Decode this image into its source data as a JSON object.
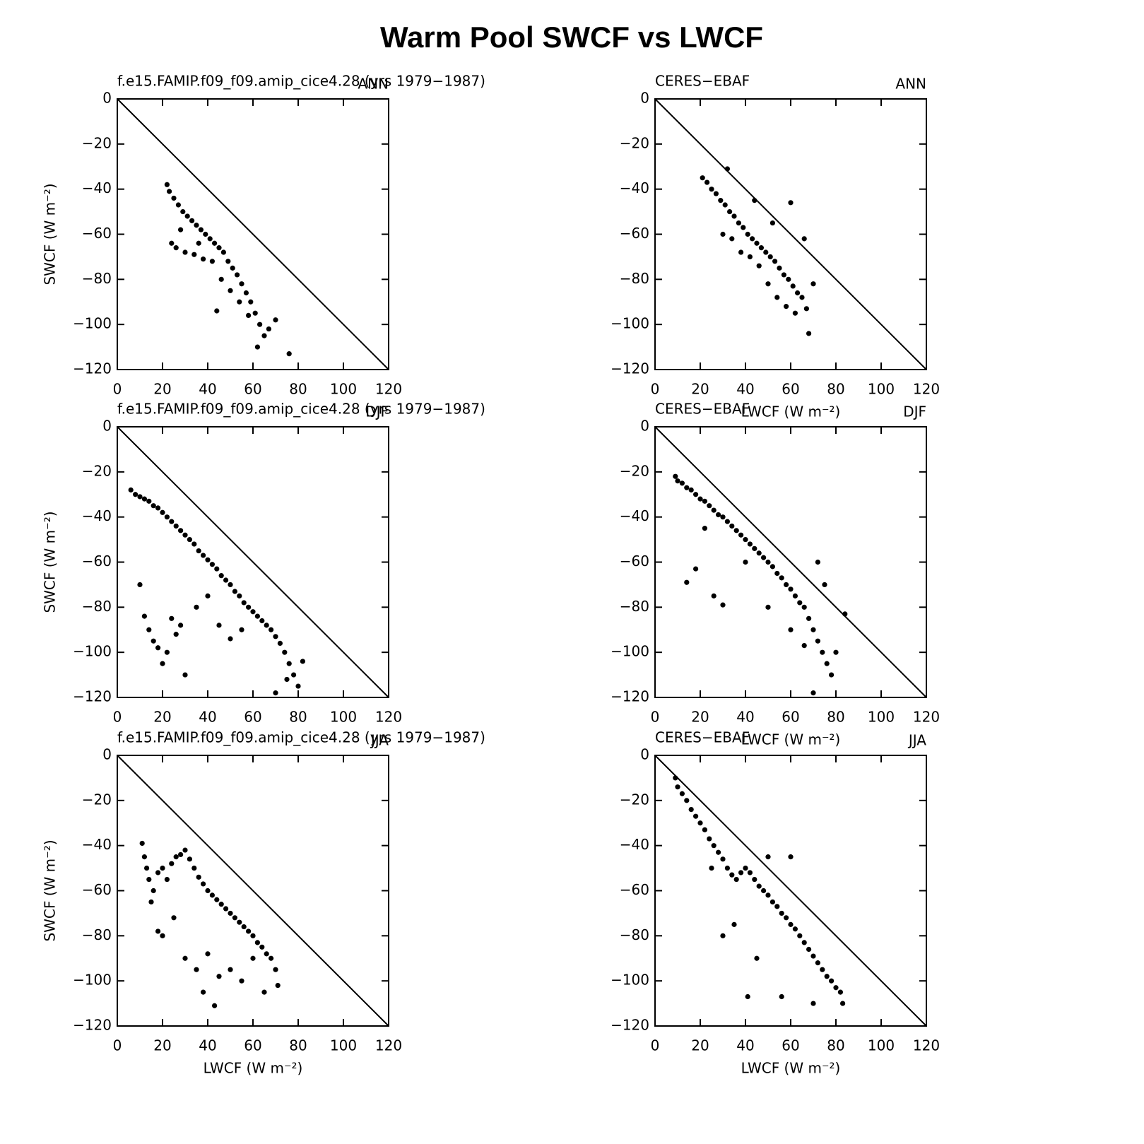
{
  "title": "Warm Pool SWCF vs LWCF",
  "chart_data": [
    {
      "type": "scatter",
      "title": "f.e15.FAMIP.f09_f09.amip_cice4.28 (yrs 1979−1987)",
      "season": "ANN",
      "y_label": "SWCF (W m⁻²)",
      "color": "#000000",
      "xlim": [
        0,
        120
      ],
      "ylim": [
        -120,
        0
      ],
      "xticks": [
        0,
        20,
        40,
        60,
        80,
        100,
        120
      ],
      "yticks": [
        0,
        {
          "value": -20,
          "label": "−20"
        },
        {
          "value": -40,
          "label": "−40"
        },
        {
          "value": -60,
          "label": "−60"
        },
        {
          "value": -80,
          "label": "−80"
        },
        {
          "value": -100,
          "label": "−100"
        },
        {
          "value": -120,
          "label": "−120"
        }
      ],
      "x": [
        22,
        23,
        25,
        27,
        29,
        31,
        33,
        35,
        37,
        39,
        41,
        43,
        45,
        47,
        49,
        51,
        53,
        55,
        57,
        59,
        61,
        63,
        65,
        67,
        70,
        76,
        24,
        26,
        30,
        34,
        38,
        42,
        46,
        50,
        54,
        58,
        62,
        28,
        36,
        44
      ],
      "y": [
        -38,
        -41,
        -44,
        -47,
        -50,
        -52,
        -54,
        -56,
        -58,
        -60,
        -62,
        -64,
        -66,
        -68,
        -72,
        -75,
        -78,
        -82,
        -86,
        -90,
        -95,
        -100,
        -105,
        -102,
        -98,
        -113,
        -64,
        -66,
        -68,
        -69,
        -71,
        -72,
        -80,
        -85,
        -90,
        -96,
        -110,
        -58,
        -64,
        -94
      ]
    },
    {
      "type": "scatter",
      "title": "CERES−EBAF",
      "season": "ANN",
      "x_label": "LWCF (W m⁻²)",
      "color": "#000000",
      "xlim": [
        0,
        120
      ],
      "ylim": [
        -120,
        0
      ],
      "xticks": [
        0,
        20,
        40,
        60,
        80,
        100,
        120
      ],
      "yticks": [
        0,
        {
          "value": -20,
          "label": "−20"
        },
        {
          "value": -40,
          "label": "−40"
        },
        {
          "value": -60,
          "label": "−60"
        },
        {
          "value": -80,
          "label": "−80"
        },
        {
          "value": -100,
          "label": "−100"
        },
        {
          "value": -120,
          "label": "−120"
        }
      ],
      "x": [
        21,
        23,
        25,
        27,
        29,
        31,
        32,
        33,
        35,
        37,
        39,
        41,
        43,
        45,
        47,
        49,
        51,
        53,
        55,
        57,
        59,
        61,
        63,
        65,
        67,
        68,
        30,
        34,
        38,
        42,
        46,
        50,
        54,
        58,
        62,
        66,
        70,
        60,
        44,
        52
      ],
      "y": [
        -35,
        -37,
        -40,
        -42,
        -45,
        -47,
        -31,
        -50,
        -52,
        -55,
        -57,
        -60,
        -62,
        -64,
        -66,
        -68,
        -70,
        -72,
        -75,
        -78,
        -80,
        -83,
        -86,
        -88,
        -93,
        -104,
        -60,
        -62,
        -68,
        -70,
        -74,
        -82,
        -88,
        -92,
        -95,
        -62,
        -82,
        -46,
        -45,
        -55
      ]
    },
    {
      "type": "scatter",
      "title": "f.e15.FAMIP.f09_f09.amip_cice4.28 (yrs 1979−1987)",
      "season": "DJF",
      "y_label": "SWCF (W m⁻²)",
      "color": "#000000",
      "xlim": [
        0,
        120
      ],
      "ylim": [
        -120,
        0
      ],
      "xticks": [
        0,
        20,
        40,
        60,
        80,
        100,
        120
      ],
      "yticks": [
        0,
        {
          "value": -20,
          "label": "−20"
        },
        {
          "value": -40,
          "label": "−40"
        },
        {
          "value": -60,
          "label": "−60"
        },
        {
          "value": -80,
          "label": "−80"
        },
        {
          "value": -100,
          "label": "−100"
        },
        {
          "value": -120,
          "label": "−120"
        }
      ],
      "x": [
        6,
        8,
        10,
        12,
        14,
        16,
        18,
        20,
        22,
        24,
        26,
        28,
        30,
        32,
        34,
        36,
        38,
        40,
        42,
        44,
        46,
        48,
        50,
        52,
        54,
        56,
        58,
        60,
        62,
        64,
        66,
        68,
        70,
        72,
        74,
        76,
        78,
        80,
        82,
        12,
        14,
        16,
        18,
        20,
        22,
        24,
        26,
        28,
        30,
        35,
        40,
        45,
        50,
        55,
        10,
        70,
        75
      ],
      "y": [
        -28,
        -30,
        -31,
        -32,
        -33,
        -35,
        -36,
        -38,
        -40,
        -42,
        -44,
        -46,
        -48,
        -50,
        -52,
        -55,
        -57,
        -59,
        -61,
        -63,
        -66,
        -68,
        -70,
        -73,
        -75,
        -78,
        -80,
        -82,
        -84,
        -86,
        -88,
        -90,
        -93,
        -96,
        -100,
        -105,
        -110,
        -115,
        -104,
        -84,
        -90,
        -95,
        -98,
        -105,
        -100,
        -85,
        -92,
        -88,
        -110,
        -80,
        -75,
        -88,
        -94,
        -90,
        -70,
        -118,
        -112
      ]
    },
    {
      "type": "scatter",
      "title": "CERES−EBAF",
      "season": "DJF",
      "x_label": "LWCF (W m⁻²)",
      "color": "#000000",
      "xlim": [
        0,
        120
      ],
      "ylim": [
        -120,
        0
      ],
      "xticks": [
        0,
        20,
        40,
        60,
        80,
        100,
        120
      ],
      "yticks": [
        0,
        {
          "value": -20,
          "label": "−20"
        },
        {
          "value": -40,
          "label": "−40"
        },
        {
          "value": -60,
          "label": "−60"
        },
        {
          "value": -80,
          "label": "−80"
        },
        {
          "value": -100,
          "label": "−100"
        },
        {
          "value": -120,
          "label": "−120"
        }
      ],
      "x": [
        9,
        10,
        12,
        14,
        16,
        18,
        20,
        22,
        24,
        26,
        28,
        30,
        32,
        34,
        36,
        38,
        40,
        42,
        44,
        46,
        48,
        50,
        52,
        54,
        56,
        58,
        60,
        62,
        64,
        66,
        68,
        70,
        72,
        74,
        76,
        78,
        80,
        84,
        14,
        18,
        22,
        26,
        30,
        40,
        50,
        60,
        66,
        70,
        72,
        75
      ],
      "y": [
        -22,
        -24,
        -25,
        -27,
        -28,
        -30,
        -32,
        -33,
        -35,
        -37,
        -39,
        -40,
        -42,
        -44,
        -46,
        -48,
        -50,
        -52,
        -54,
        -56,
        -58,
        -60,
        -62,
        -65,
        -67,
        -70,
        -72,
        -75,
        -78,
        -80,
        -85,
        -90,
        -95,
        -100,
        -105,
        -110,
        -100,
        -83,
        -69,
        -63,
        -45,
        -75,
        -79,
        -60,
        -80,
        -90,
        -97,
        -118,
        -60,
        -70
      ]
    },
    {
      "type": "scatter",
      "title": "f.e15.FAMIP.f09_f09.amip_cice4.28 (yrs 1979−1987)",
      "season": "JJA",
      "x_label": "LWCF (W m⁻²)",
      "y_label": "SWCF (W m⁻²)",
      "color": "#000000",
      "xlim": [
        0,
        120
      ],
      "ylim": [
        -120,
        0
      ],
      "xticks": [
        0,
        20,
        40,
        60,
        80,
        100,
        120
      ],
      "yticks": [
        0,
        {
          "value": -20,
          "label": "−20"
        },
        {
          "value": -40,
          "label": "−40"
        },
        {
          "value": -60,
          "label": "−60"
        },
        {
          "value": -80,
          "label": "−80"
        },
        {
          "value": -100,
          "label": "−100"
        },
        {
          "value": -120,
          "label": "−120"
        }
      ],
      "x": [
        11,
        12,
        13,
        14,
        16,
        18,
        20,
        22,
        24,
        26,
        28,
        30,
        32,
        34,
        36,
        38,
        40,
        42,
        44,
        46,
        48,
        50,
        52,
        54,
        56,
        58,
        60,
        62,
        64,
        66,
        68,
        70,
        71,
        15,
        18,
        25,
        30,
        35,
        40,
        45,
        50,
        55,
        60,
        65,
        20,
        38,
        43
      ],
      "y": [
        -39,
        -45,
        -50,
        -55,
        -60,
        -52,
        -50,
        -55,
        -48,
        -45,
        -44,
        -42,
        -46,
        -50,
        -54,
        -57,
        -60,
        -62,
        -64,
        -66,
        -68,
        -70,
        -72,
        -74,
        -76,
        -78,
        -80,
        -83,
        -85,
        -88,
        -90,
        -95,
        -102,
        -65,
        -78,
        -72,
        -90,
        -95,
        -88,
        -98,
        -95,
        -100,
        -90,
        -105,
        -80,
        -105,
        -111
      ]
    },
    {
      "type": "scatter",
      "title": "CERES−EBAF",
      "season": "JJA",
      "x_label": "LWCF (W m⁻²)",
      "color": "#000000",
      "xlim": [
        0,
        120
      ],
      "ylim": [
        -120,
        0
      ],
      "xticks": [
        0,
        20,
        40,
        60,
        80,
        100,
        120
      ],
      "yticks": [
        0,
        {
          "value": -20,
          "label": "−20"
        },
        {
          "value": -40,
          "label": "−40"
        },
        {
          "value": -60,
          "label": "−60"
        },
        {
          "value": -80,
          "label": "−80"
        },
        {
          "value": -100,
          "label": "−100"
        },
        {
          "value": -120,
          "label": "−120"
        }
      ],
      "x": [
        9,
        10,
        12,
        14,
        16,
        18,
        20,
        22,
        24,
        26,
        28,
        30,
        32,
        34,
        36,
        38,
        40,
        42,
        44,
        46,
        48,
        50,
        52,
        54,
        56,
        58,
        60,
        62,
        64,
        66,
        68,
        70,
        72,
        74,
        76,
        78,
        80,
        82,
        83,
        30,
        35,
        41,
        45,
        56,
        70,
        50,
        60,
        25
      ],
      "y": [
        -10,
        -14,
        -17,
        -20,
        -24,
        -27,
        -30,
        -33,
        -37,
        -40,
        -43,
        -46,
        -50,
        -53,
        -55,
        -52,
        -50,
        -52,
        -55,
        -58,
        -60,
        -62,
        -65,
        -67,
        -70,
        -72,
        -75,
        -77,
        -80,
        -83,
        -86,
        -89,
        -92,
        -95,
        -98,
        -100,
        -103,
        -105,
        -110,
        -80,
        -75,
        -107,
        -90,
        -107,
        -110,
        -45,
        -45,
        -50
      ]
    }
  ]
}
